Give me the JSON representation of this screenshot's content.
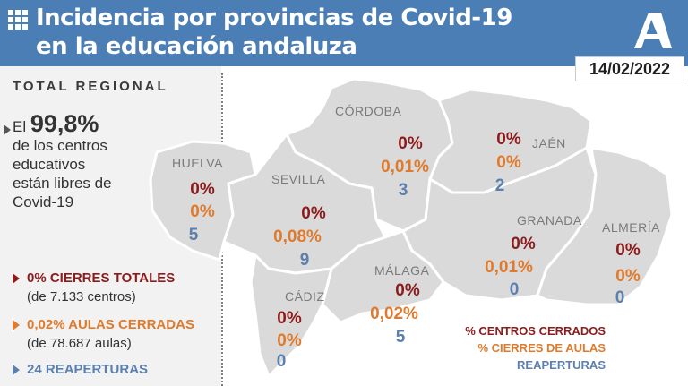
{
  "header": {
    "title_line1": "Incidencia por provincias de Covid-19",
    "title_line2": "en la educación andaluza",
    "date": "14/02/2022"
  },
  "colors": {
    "header_bg": "#4a7eb5",
    "closed_centers": "#8e1b1b",
    "closed_classrooms": "#e07a2c",
    "reopenings": "#5b7fae",
    "province_fill": "#dadada"
  },
  "icons": [
    "grid-icon",
    "junta-andalucia-logo"
  ],
  "regional": {
    "label": "TOTAL REGIONAL",
    "el": "El",
    "percent_free": "99,8%",
    "desc_line1": "de los centros",
    "desc_line2": "educativos",
    "desc_line3": "están libres de",
    "desc_line4": "Covid-19",
    "closures_total": "0% CIERRES TOTALES",
    "closures_total_sub": "(de 7.133 centros)",
    "classrooms_closed": "0,02% AULAS CERRADAS",
    "classrooms_closed_sub": "(de 78.687 aulas)",
    "reopenings": "24 REAPERTURAS"
  },
  "provinces": [
    {
      "key": "cordoba",
      "name": "CÓRDOBA",
      "centros": "0%",
      "aulas": "0,01%",
      "reaperturas": "3"
    },
    {
      "key": "jaen",
      "name": "JAÉN",
      "centros": "0%",
      "aulas": "0%",
      "reaperturas": "2"
    },
    {
      "key": "huelva",
      "name": "HUELVA",
      "centros": "0%",
      "aulas": "0%",
      "reaperturas": "5"
    },
    {
      "key": "sevilla",
      "name": "SEVILLA",
      "centros": "0%",
      "aulas": "0,08%",
      "reaperturas": "9"
    },
    {
      "key": "granada",
      "name": "GRANADA",
      "centros": "0%",
      "aulas": "0,01%",
      "reaperturas": "0"
    },
    {
      "key": "almeria",
      "name": "ALMERÍA",
      "centros": "0%",
      "aulas": "0%",
      "reaperturas": "0"
    },
    {
      "key": "malaga",
      "name": "MÁLAGA",
      "centros": "0%",
      "aulas": "0,02%",
      "reaperturas": "5"
    },
    {
      "key": "cadiz",
      "name": "CÁDIZ",
      "centros": "0%",
      "aulas": "0%",
      "reaperturas": "0"
    }
  ],
  "legend": {
    "closed_centers": "% CENTROS CERRADOS",
    "closed_classrooms": "% CIERRES DE AULAS",
    "reopenings": "REAPERTURAS"
  }
}
